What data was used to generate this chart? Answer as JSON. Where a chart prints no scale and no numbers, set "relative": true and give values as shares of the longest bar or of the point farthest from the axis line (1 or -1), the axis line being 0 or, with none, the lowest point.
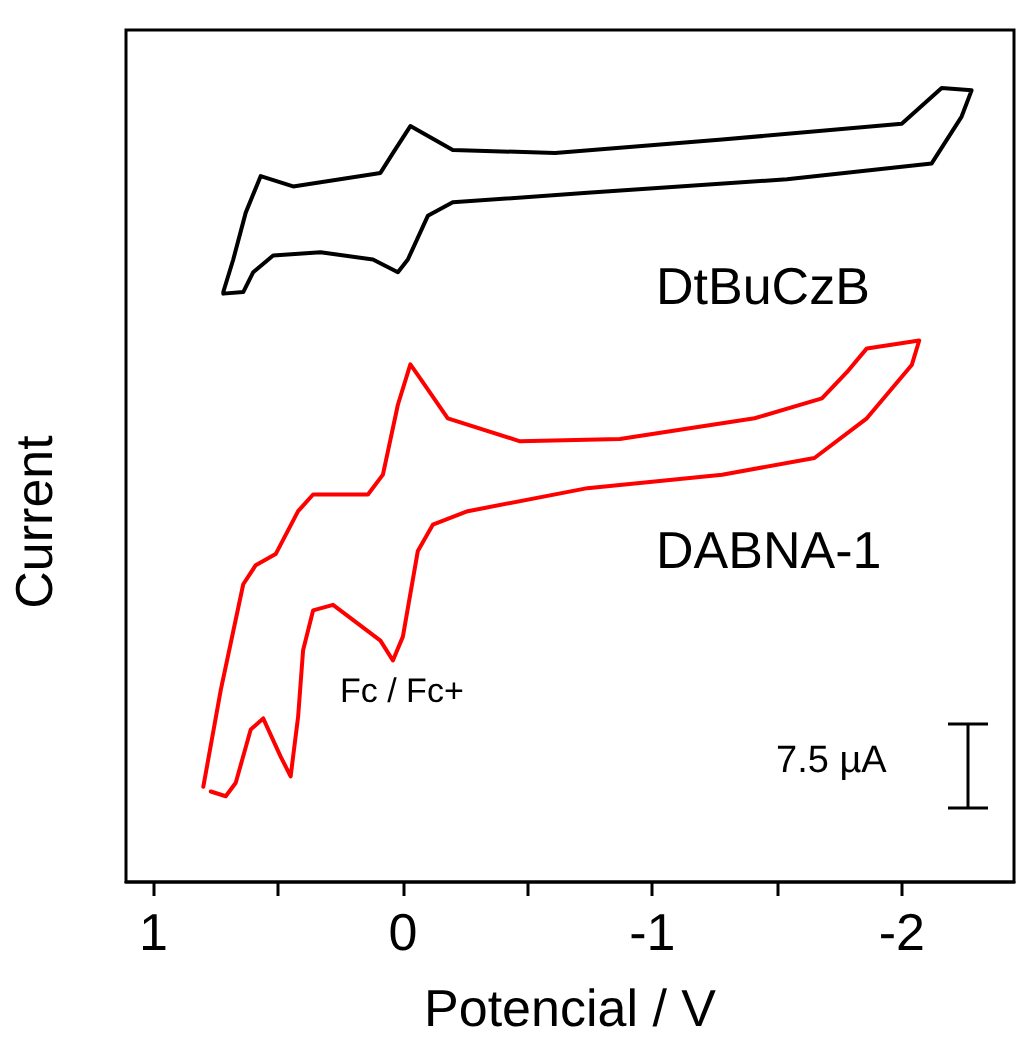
{
  "chart_data": {
    "type": "line",
    "xlabel": "Potencial / V",
    "ylabel": "Current",
    "relative": true,
    "marker": "none",
    "line_style": "solid",
    "grid": false,
    "legend": false,
    "xlim": [
      1.11,
      -2.45
    ],
    "xticks": [
      1,
      {
        "value": 0.5,
        "label": null
      },
      0,
      {
        "value": -0.5,
        "label": null
      },
      -1,
      {
        "value": -1.5,
        "label": null
      },
      -2
    ],
    "annotations": [
      "Fc / Fc+",
      "7.5 µA"
    ],
    "series": [
      {
        "name": "DtBuCzB",
        "color": "#000000",
        "x": [
          0.72,
          0.68,
          0.63,
          0.57,
          0.44,
          0.09,
          0.04,
          -0.03,
          -0.2,
          -0.61,
          -1.28,
          -2.0,
          -2.16,
          -2.28,
          -2.24,
          -2.12,
          -1.54,
          -0.74,
          -0.2,
          -0.1,
          -0.02,
          0.02,
          0.12,
          0.33,
          0.52,
          0.6,
          0.64,
          0.72
        ],
        "values": [
          0.743,
          0.784,
          0.843,
          0.889,
          0.876,
          0.893,
          0.918,
          0.952,
          0.922,
          0.918,
          0.935,
          0.955,
          1.0,
          0.997,
          0.964,
          0.905,
          0.885,
          0.868,
          0.856,
          0.839,
          0.784,
          0.768,
          0.784,
          0.793,
          0.789,
          0.768,
          0.743,
          0.741
        ]
      },
      {
        "name": "DABNA-1",
        "color": "#ff0000",
        "x": [
          0.8,
          0.73,
          0.64,
          0.59,
          0.51,
          0.42,
          0.36,
          0.14,
          0.08,
          0.02,
          -0.03,
          -0.07,
          -0.18,
          -0.47,
          -0.87,
          -1.41,
          -1.68,
          -1.78,
          -1.86,
          -2.07,
          -2.04,
          -1.86,
          -1.65,
          -1.28,
          -0.74,
          -0.26,
          -0.12,
          -0.06,
          0.0,
          0.04,
          0.09,
          0.28,
          0.36,
          0.4,
          0.42,
          0.45,
          0.49,
          0.56,
          0.61,
          0.67,
          0.71,
          0.77
        ],
        "values": [
          0.12,
          0.242,
          0.375,
          0.399,
          0.413,
          0.467,
          0.488,
          0.488,
          0.513,
          0.601,
          0.652,
          0.634,
          0.584,
          0.555,
          0.558,
          0.584,
          0.609,
          0.642,
          0.672,
          0.682,
          0.651,
          0.584,
          0.534,
          0.513,
          0.496,
          0.467,
          0.45,
          0.417,
          0.309,
          0.279,
          0.304,
          0.349,
          0.342,
          0.292,
          0.208,
          0.133,
          0.158,
          0.206,
          0.192,
          0.125,
          0.108,
          0.114
        ]
      }
    ]
  }
}
